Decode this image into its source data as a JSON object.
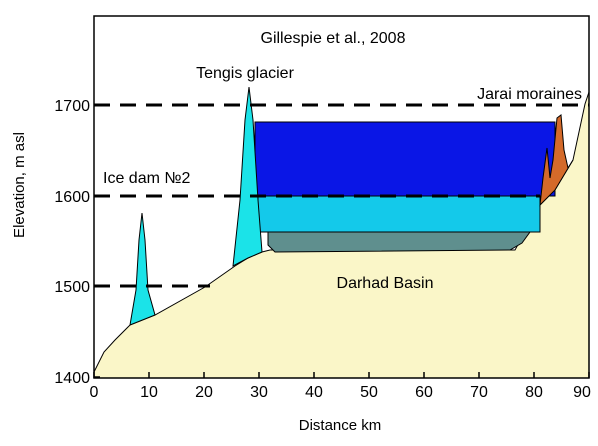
{
  "citation": "Gillespie et al., 2008",
  "labels": {
    "glacier": "Tengis glacier",
    "moraines": "Jarai moraines",
    "ice_dam": "Ice dam №2",
    "basin": "Darhad Basin"
  },
  "axes": {
    "xlabel": "Distance km",
    "ylabel": "Elevation, m asl",
    "xticks": [
      "0",
      "10",
      "20",
      "30",
      "40",
      "50",
      "60",
      "70",
      "80",
      "90"
    ],
    "yticks": [
      "1400",
      "1500",
      "1600",
      "1700"
    ]
  },
  "colors": {
    "background": "#faf6c8",
    "ground": "#faf6c8",
    "ice": "#1be3e8",
    "upper_lake": "#0a16e6",
    "middle_lake": "#14c9ea",
    "sediment": "#5f8f8e",
    "moraine": "#d46a2a",
    "frame": "#000000"
  }
}
